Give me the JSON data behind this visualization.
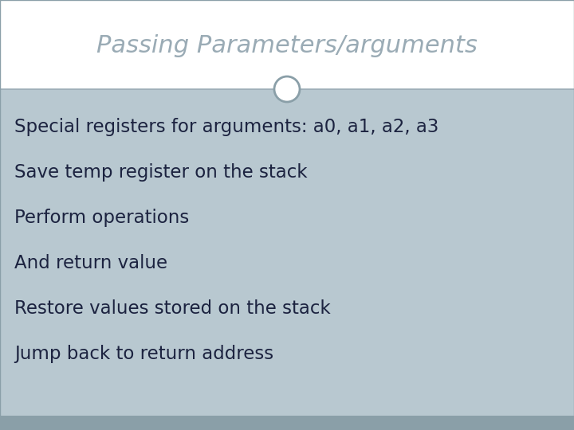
{
  "title": "Passing Parameters/arguments",
  "title_color": "#9aabb5",
  "title_fontsize": 22,
  "background_white": "#ffffff",
  "background_grey": "#aebfc9",
  "background_grey_lighter": "#b8c8d0",
  "divider_color": "#9aabb5",
  "bottom_strip_color": "#8a9fa8",
  "bullet_points": [
    "Special registers for arguments: a0, a1, a2, a3",
    "Save temp register on the stack",
    "Perform operations",
    "And return value",
    "Restore values stored on the stack",
    "Jump back to return address"
  ],
  "bullet_color": "#1c2340",
  "bullet_fontsize": 16.5,
  "circle_facecolor": "#ffffff",
  "circle_edgecolor": "#8a9fa8",
  "fig_width": 7.2,
  "fig_height": 5.4,
  "dpi": 100
}
